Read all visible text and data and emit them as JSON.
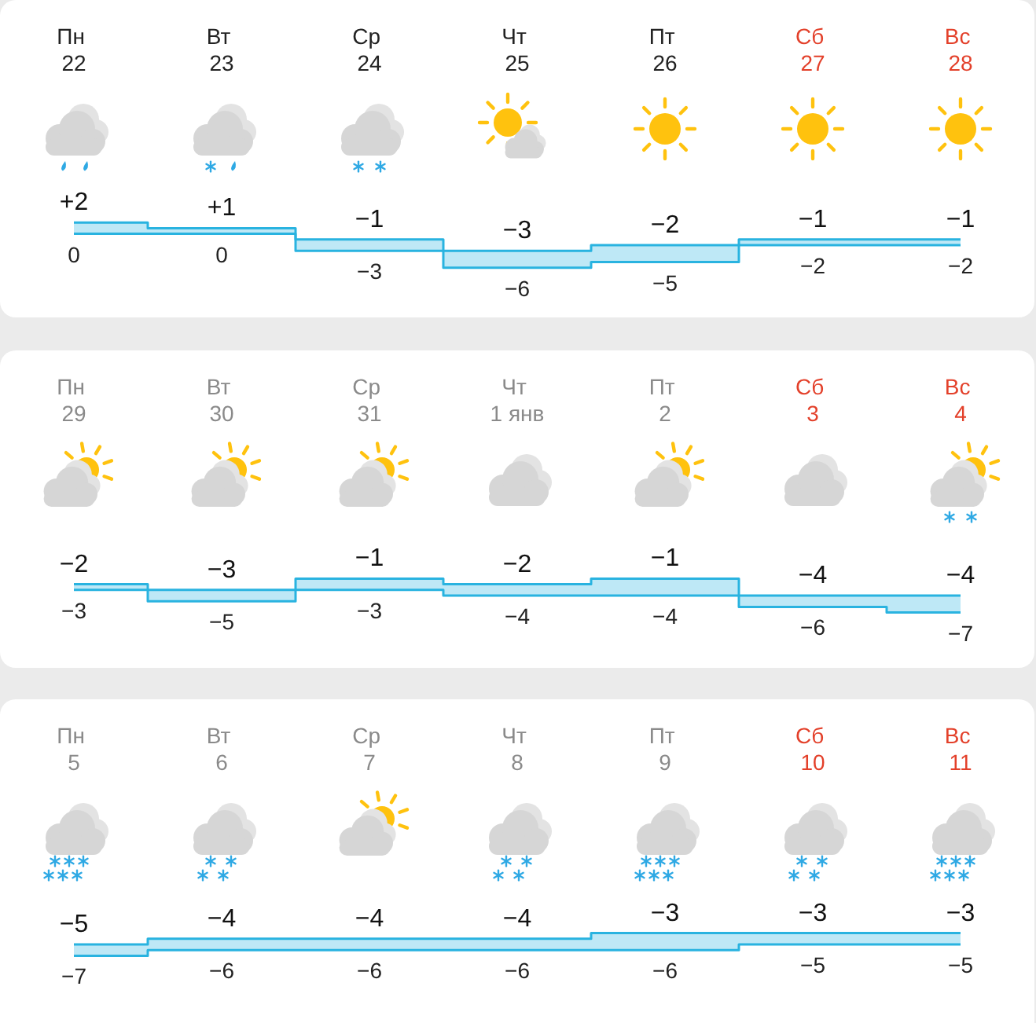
{
  "chart_data": [
    {
      "type": "step",
      "categories": [
        "Пн 22",
        "Вт 23",
        "Ср 24",
        "Чт 25",
        "Пт 26",
        "Сб 27",
        "Вс 28"
      ],
      "series": [
        {
          "color": "#29b3e0",
          "values": [
            2,
            1,
            -1,
            -3,
            -2,
            -1,
            -1
          ],
          "value_labels": [
            "+2",
            "+1",
            "−1",
            "−3",
            "−2",
            "−1",
            "−1"
          ],
          "lower": [
            0,
            0,
            -3,
            -6,
            -5,
            -2,
            -2
          ],
          "upper": [
            2,
            1,
            -1,
            -3,
            -2,
            -1,
            -1
          ]
        },
        {
          "color": "#29b3e0",
          "values": [
            0,
            0,
            -3,
            -6,
            -5,
            -2,
            -2
          ]
        }
      ],
      "data_labels": true
    },
    {
      "type": "step",
      "categories": [
        "Пн 29",
        "Вт 30",
        "Ср 31",
        "Чт 1 янв",
        "Пт 2",
        "Сб 3",
        "Вс 4"
      ],
      "series": [
        {
          "color": "#29b3e0",
          "values": [
            -2,
            -3,
            -1,
            -2,
            -1,
            -4,
            -4
          ],
          "lower": [
            -3,
            -5,
            -3,
            -4,
            -4,
            -6,
            -7
          ],
          "upper": [
            -2,
            -3,
            -1,
            -2,
            -1,
            -4,
            -4
          ]
        },
        {
          "color": "#29b3e0",
          "values": [
            -3,
            -5,
            -3,
            -4,
            -4,
            -6,
            -7
          ]
        }
      ],
      "data_labels": true
    },
    {
      "type": "step",
      "categories": [
        "Пн 5",
        "Вт 6",
        "Ср 7",
        "Чт 8",
        "Пт 9",
        "Сб 10",
        "Вс 11"
      ],
      "series": [
        {
          "color": "#29b3e0",
          "values": [
            -5,
            -4,
            -4,
            -4,
            -3,
            -3,
            -3
          ],
          "lower": [
            -7,
            -6,
            -6,
            -6,
            -6,
            -5,
            -5
          ],
          "upper": [
            -5,
            -4,
            -4,
            -4,
            -3,
            -3,
            -3
          ]
        },
        {
          "color": "#29b3e0",
          "values": [
            -7,
            -6,
            -6,
            -6,
            -6,
            -5,
            -5
          ]
        }
      ],
      "data_labels": true
    }
  ]
}
